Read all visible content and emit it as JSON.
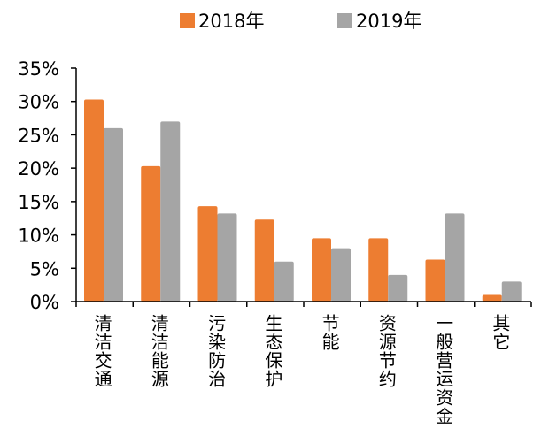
{
  "chart_data": {
    "type": "bar",
    "categories": [
      "清洁交通",
      "清洁能源",
      "污染防治",
      "生态保护",
      "节能",
      "资源节约",
      "一般营运资金",
      "其它"
    ],
    "series": [
      {
        "name": "2018年",
        "color": "#ED7D31",
        "values": [
          30.3,
          20.3,
          14.3,
          12.3,
          9.5,
          9.5,
          6.3,
          1.0
        ]
      },
      {
        "name": "2019年",
        "color": "#A5A5A5",
        "values": [
          26.0,
          27.0,
          13.2,
          6.0,
          8.0,
          4.0,
          13.2,
          3.0
        ]
      }
    ],
    "y_ticks": [
      "0%",
      "5%",
      "10%",
      "15%",
      "20%",
      "25%",
      "30%",
      "35%"
    ],
    "ylim": [
      0,
      35
    ],
    "title": "",
    "xlabel": "",
    "ylabel": "",
    "legend_position": "top",
    "grid": false
  }
}
